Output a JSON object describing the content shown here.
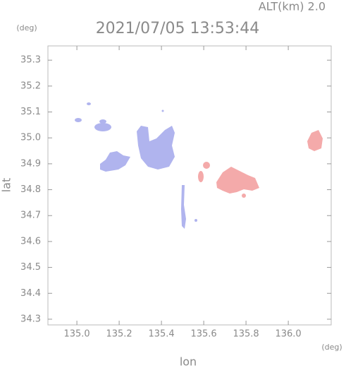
{
  "chart_data": {
    "type": "map",
    "title": "2021/07/05 13:53:44",
    "annotation": "ALT(km)  2.0",
    "y_unit": "(deg)",
    "x_unit": "(deg)",
    "x_label": "lon",
    "y_label": "lat",
    "xlim": [
      134.863,
      136.203
    ],
    "ylim": [
      34.278,
      35.355
    ],
    "xticks": [
      {
        "value": 135,
        "label": "135.0"
      },
      135.2,
      135.4,
      135.6,
      135.8,
      {
        "value": 136,
        "label": "136.0"
      }
    ],
    "yticks": [
      34.3,
      34.4,
      34.5,
      34.6,
      34.7,
      34.8,
      34.9,
      {
        "value": 35,
        "label": "35.0"
      },
      35.1,
      35.2,
      35.3
    ]
  }
}
